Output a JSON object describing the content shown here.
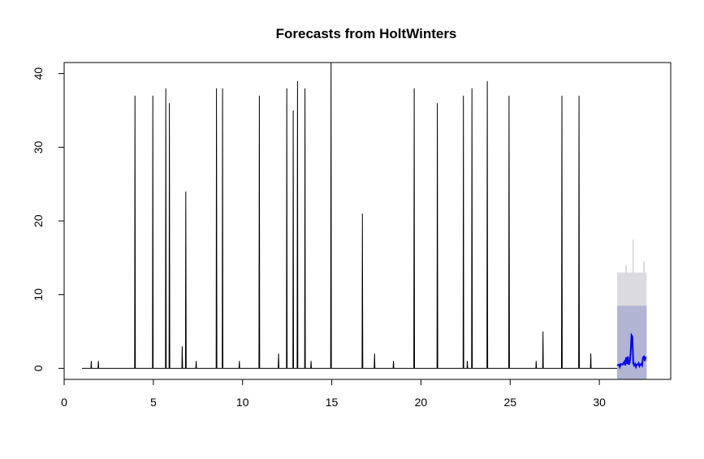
{
  "chart_data": {
    "type": "line",
    "title": "Forecasts from HoltWinters",
    "xlabel": "",
    "ylabel": "",
    "xlim": [
      0,
      34
    ],
    "ylim": [
      -1.5,
      41.5
    ],
    "x_ticks": [
      0,
      5,
      10,
      15,
      20,
      25,
      30
    ],
    "y_ticks": [
      0,
      10,
      20,
      30,
      40
    ],
    "grid": false,
    "legend": "none",
    "colors": {
      "observed": "#000000",
      "forecast": "#0000ff",
      "interval_80": "#b1b5d3",
      "interval_95": "#dbdbdf"
    },
    "series": [
      {
        "kind": "observed",
        "x": [
          1.0,
          1.5,
          1.52,
          1.54,
          1.9,
          1.92,
          1.94,
          3.95,
          3.97,
          3.99,
          4.95,
          4.97,
          4.99,
          5.68,
          5.7,
          5.72,
          5.88,
          5.9,
          5.92,
          6.6,
          6.62,
          6.64,
          6.8,
          6.82,
          6.84,
          7.38,
          7.4,
          7.42,
          8.52,
          8.54,
          8.56,
          8.86,
          8.88,
          8.9,
          9.8,
          9.82,
          9.84,
          10.92,
          10.94,
          10.96,
          12.0,
          12.02,
          12.04,
          12.46,
          12.48,
          12.5,
          12.82,
          12.84,
          12.86,
          13.06,
          13.08,
          13.1,
          13.48,
          13.5,
          13.52,
          13.82,
          13.84,
          13.86,
          14.94,
          14.96,
          14.98,
          16.7,
          16.72,
          16.74,
          17.38,
          17.4,
          17.42,
          18.44,
          18.46,
          18.48,
          19.6,
          19.62,
          19.64,
          20.9,
          20.92,
          20.94,
          22.36,
          22.38,
          22.4,
          22.58,
          22.6,
          22.62,
          22.84,
          22.86,
          22.88,
          23.7,
          23.72,
          23.74,
          24.92,
          24.94,
          24.96,
          26.44,
          26.46,
          26.48,
          26.82,
          26.84,
          26.86,
          27.88,
          27.9,
          27.92,
          28.84,
          28.86,
          28.88,
          29.5,
          29.52,
          29.54,
          31.0
        ],
        "y": [
          0,
          0,
          1,
          0,
          0,
          1,
          0,
          0,
          37,
          0,
          0,
          37,
          0,
          0,
          38,
          0,
          0,
          36,
          0,
          0,
          3,
          0,
          0,
          24,
          0,
          0,
          1,
          0,
          0,
          38,
          0,
          0,
          38,
          0,
          0,
          1,
          0,
          0,
          37,
          0,
          0,
          2,
          0,
          0,
          38,
          0,
          0,
          35,
          0,
          0,
          39,
          0,
          0,
          38,
          0,
          0,
          1,
          0,
          0,
          42,
          0,
          0,
          21,
          0,
          0,
          2,
          0,
          0,
          1,
          0,
          0,
          38,
          0,
          0,
          36,
          0,
          0,
          37,
          0,
          0,
          1,
          0,
          0,
          38,
          0,
          0,
          39,
          0,
          0,
          37,
          0,
          0,
          1,
          0,
          0,
          5,
          0,
          0,
          37,
          0,
          0,
          37,
          0,
          0,
          2,
          0,
          0
        ]
      },
      {
        "kind": "forecast",
        "x": [
          31.0,
          31.1,
          31.15,
          31.2,
          31.3,
          31.4,
          31.45,
          31.5,
          31.55,
          31.6,
          31.65,
          31.7,
          31.75,
          31.8,
          31.85,
          31.9,
          31.95,
          32.0,
          32.05,
          32.1,
          32.15,
          32.2,
          32.25,
          32.3,
          32.35,
          32.4,
          32.45,
          32.5,
          32.55,
          32.6
        ],
        "y": [
          0.4,
          0.5,
          0.2,
          0.6,
          0.5,
          0.9,
          0.4,
          1.5,
          0.6,
          1.6,
          0.5,
          0.8,
          2.0,
          4.5,
          4.3,
          0.7,
          0.4,
          0.6,
          0.2,
          0.5,
          0.5,
          0.7,
          0.3,
          0.5,
          0.6,
          0.4,
          1.5,
          1.6,
          1.0,
          1.6
        ]
      }
    ],
    "intervals": {
      "x_range": [
        31.0,
        32.65
      ],
      "lo95": -1.5,
      "hi95": 13.0,
      "lo80": -1.5,
      "hi80": 8.5,
      "hi95_peaks": [
        {
          "x": 31.9,
          "y": 17.5
        },
        {
          "x": 31.5,
          "y": 14.0
        },
        {
          "x": 32.5,
          "y": 14.5
        }
      ]
    }
  }
}
